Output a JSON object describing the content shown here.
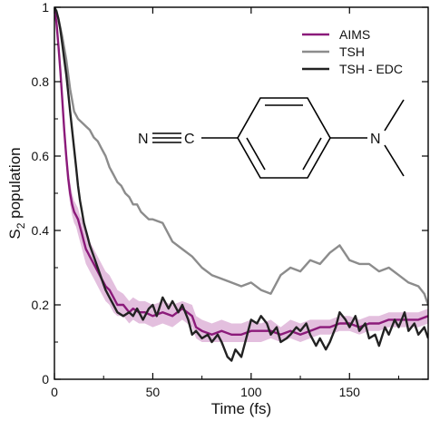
{
  "chart_data": {
    "type": "line",
    "xlabel": "Time (fs)",
    "ylabel_main": "S",
    "ylabel_sub": "2",
    "ylabel_rest": " population",
    "xlim": [
      0,
      190
    ],
    "ylim": [
      0,
      1
    ],
    "xticks": [
      0,
      50,
      100,
      150
    ],
    "yticks": [
      0,
      0.2,
      0.4,
      0.6,
      0.8,
      1
    ],
    "ytick_labels": [
      "0",
      "0.2",
      "0.4",
      "0.6",
      "0.8",
      "1"
    ],
    "grid": false,
    "legend_position": "top-right",
    "series": [
      {
        "name": "AIMS",
        "color": "#8b1a7a",
        "band_color": "#d9a9d3",
        "x": [
          0,
          1,
          2,
          3,
          4,
          5,
          6,
          7,
          8,
          9,
          10,
          11,
          12,
          13,
          14,
          15,
          16,
          17,
          18,
          20,
          22,
          24,
          26,
          28,
          30,
          32,
          35,
          38,
          40,
          43,
          46,
          50,
          55,
          60,
          65,
          70,
          72,
          75,
          80,
          85,
          90,
          95,
          100,
          105,
          110,
          115,
          120,
          125,
          130,
          135,
          140,
          145,
          150,
          155,
          160,
          165,
          170,
          175,
          180,
          185,
          190
        ],
        "y": [
          1.0,
          0.96,
          0.9,
          0.83,
          0.75,
          0.67,
          0.6,
          0.54,
          0.5,
          0.47,
          0.45,
          0.44,
          0.43,
          0.41,
          0.39,
          0.37,
          0.35,
          0.34,
          0.33,
          0.31,
          0.29,
          0.27,
          0.25,
          0.24,
          0.22,
          0.2,
          0.2,
          0.18,
          0.19,
          0.18,
          0.18,
          0.17,
          0.18,
          0.17,
          0.19,
          0.17,
          0.14,
          0.13,
          0.12,
          0.13,
          0.12,
          0.12,
          0.13,
          0.13,
          0.13,
          0.12,
          0.13,
          0.12,
          0.13,
          0.14,
          0.14,
          0.15,
          0.15,
          0.14,
          0.15,
          0.15,
          0.16,
          0.16,
          0.16,
          0.16,
          0.17
        ],
        "lower": [
          1.0,
          0.95,
          0.88,
          0.8,
          0.72,
          0.64,
          0.57,
          0.51,
          0.47,
          0.44,
          0.42,
          0.41,
          0.39,
          0.37,
          0.35,
          0.33,
          0.31,
          0.3,
          0.29,
          0.27,
          0.25,
          0.23,
          0.21,
          0.2,
          0.18,
          0.17,
          0.17,
          0.15,
          0.16,
          0.15,
          0.15,
          0.14,
          0.15,
          0.14,
          0.16,
          0.14,
          0.11,
          0.1,
          0.1,
          0.1,
          0.1,
          0.1,
          0.1,
          0.1,
          0.11,
          0.1,
          0.11,
          0.1,
          0.11,
          0.12,
          0.12,
          0.13,
          0.13,
          0.12,
          0.13,
          0.13,
          0.14,
          0.14,
          0.14,
          0.14,
          0.15
        ],
        "upper": [
          1.0,
          0.97,
          0.92,
          0.86,
          0.78,
          0.7,
          0.63,
          0.57,
          0.53,
          0.5,
          0.48,
          0.47,
          0.46,
          0.44,
          0.43,
          0.41,
          0.39,
          0.38,
          0.37,
          0.35,
          0.33,
          0.31,
          0.29,
          0.28,
          0.26,
          0.24,
          0.23,
          0.21,
          0.22,
          0.21,
          0.21,
          0.2,
          0.21,
          0.2,
          0.21,
          0.2,
          0.17,
          0.16,
          0.15,
          0.16,
          0.15,
          0.15,
          0.16,
          0.15,
          0.16,
          0.14,
          0.16,
          0.15,
          0.16,
          0.16,
          0.16,
          0.17,
          0.17,
          0.16,
          0.17,
          0.17,
          0.18,
          0.18,
          0.18,
          0.18,
          0.19
        ]
      },
      {
        "name": "TSH",
        "color": "#8c8c8c",
        "x": [
          0,
          2,
          4,
          6,
          8,
          10,
          12,
          14,
          16,
          18,
          20,
          22,
          24,
          26,
          28,
          30,
          32,
          34,
          36,
          38,
          40,
          42,
          44,
          46,
          48,
          50,
          55,
          60,
          65,
          70,
          75,
          80,
          85,
          90,
          95,
          100,
          105,
          110,
          115,
          120,
          125,
          130,
          135,
          140,
          145,
          150,
          155,
          160,
          165,
          170,
          175,
          180,
          185,
          188,
          190
        ],
        "y": [
          1.0,
          0.97,
          0.92,
          0.86,
          0.78,
          0.72,
          0.7,
          0.69,
          0.68,
          0.67,
          0.65,
          0.64,
          0.62,
          0.6,
          0.57,
          0.55,
          0.53,
          0.52,
          0.5,
          0.49,
          0.47,
          0.47,
          0.45,
          0.44,
          0.43,
          0.43,
          0.42,
          0.37,
          0.35,
          0.33,
          0.3,
          0.28,
          0.27,
          0.26,
          0.25,
          0.26,
          0.24,
          0.23,
          0.28,
          0.3,
          0.29,
          0.32,
          0.31,
          0.34,
          0.36,
          0.32,
          0.31,
          0.31,
          0.29,
          0.3,
          0.28,
          0.26,
          0.25,
          0.23,
          0.2
        ]
      },
      {
        "name": "TSH - EDC",
        "color": "#222222",
        "x": [
          0,
          1,
          2,
          3,
          4,
          5,
          6,
          7,
          8,
          9,
          10,
          11,
          12,
          13,
          14,
          15,
          16,
          17,
          18,
          20,
          22,
          24,
          26,
          28,
          30,
          32,
          35,
          38,
          40,
          42,
          45,
          48,
          50,
          52,
          55,
          58,
          60,
          63,
          65,
          68,
          70,
          72,
          75,
          78,
          80,
          83,
          85,
          88,
          90,
          92,
          95,
          98,
          100,
          103,
          105,
          108,
          110,
          113,
          115,
          118,
          120,
          123,
          125,
          128,
          130,
          133,
          135,
          138,
          140,
          143,
          145,
          148,
          150,
          153,
          155,
          158,
          160,
          163,
          165,
          168,
          170,
          173,
          175,
          178,
          180,
          183,
          185,
          188,
          190
        ],
        "y": [
          1.0,
          0.99,
          0.97,
          0.94,
          0.9,
          0.86,
          0.82,
          0.77,
          0.72,
          0.67,
          0.62,
          0.57,
          0.52,
          0.48,
          0.45,
          0.42,
          0.4,
          0.38,
          0.36,
          0.33,
          0.3,
          0.27,
          0.24,
          0.22,
          0.2,
          0.18,
          0.17,
          0.18,
          0.17,
          0.19,
          0.16,
          0.19,
          0.2,
          0.17,
          0.22,
          0.19,
          0.21,
          0.18,
          0.2,
          0.16,
          0.12,
          0.13,
          0.11,
          0.12,
          0.1,
          0.12,
          0.1,
          0.06,
          0.05,
          0.08,
          0.06,
          0.12,
          0.16,
          0.15,
          0.17,
          0.15,
          0.12,
          0.14,
          0.1,
          0.11,
          0.12,
          0.14,
          0.13,
          0.15,
          0.12,
          0.09,
          0.11,
          0.08,
          0.1,
          0.14,
          0.18,
          0.16,
          0.14,
          0.17,
          0.13,
          0.15,
          0.11,
          0.12,
          0.09,
          0.14,
          0.12,
          0.16,
          0.14,
          0.18,
          0.13,
          0.15,
          0.12,
          0.14,
          0.11
        ]
      }
    ],
    "molecule": {
      "nitrile_n": "N",
      "nitrile_c": "C",
      "amine_n": "N"
    }
  }
}
